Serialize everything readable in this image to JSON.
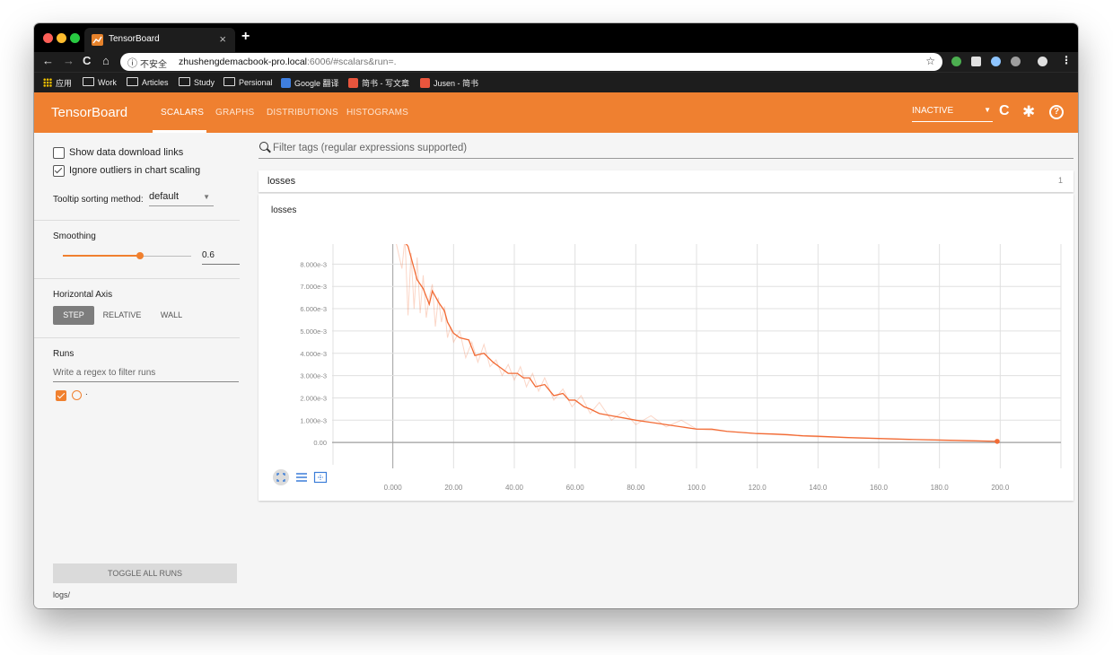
{
  "browser": {
    "tab_title": "TensorBoard",
    "tab_close": "×",
    "new_tab": "+",
    "nav": {
      "back": "←",
      "forward": "→",
      "reload": "C",
      "home": "⌂"
    },
    "omnibox": {
      "info_icon": "ⓘ",
      "security": "不安全",
      "url_host": "zhushengdemacbook-pro.local",
      "url_rest": ":6006/#scalars&run=.",
      "star": "☆"
    },
    "bookmarks": [
      {
        "label": "应用",
        "icon": "apps-icon"
      },
      {
        "label": "Work",
        "icon": "folder-icon"
      },
      {
        "label": "Articles",
        "icon": "folder-icon"
      },
      {
        "label": "Study",
        "icon": "folder-icon"
      },
      {
        "label": "Persional",
        "icon": "folder-icon"
      },
      {
        "label": "Google 翻译",
        "icon": "translate-icon"
      },
      {
        "label": "简书 - 写文章",
        "icon": "jianshu-icon"
      },
      {
        "label": "Jusen - 简书",
        "icon": "jianshu-icon"
      }
    ],
    "extension_colors": [
      "#4caf50",
      "#e0e0e0",
      "#8ec5ff",
      "#9e9e9e",
      "#e0e0e0"
    ]
  },
  "header": {
    "brand": "TensorBoard",
    "tabs": [
      "SCALARS",
      "GRAPHS",
      "DISTRIBUTIONS",
      "HISTOGRAMS"
    ],
    "active_tab": "SCALARS",
    "status_select": "INACTIVE",
    "accent": "#ef8030"
  },
  "sidebar": {
    "show_download_links": "Show data download links",
    "ignore_outliers": "Ignore outliers in chart scaling",
    "tooltip_label": "Tooltip sorting method:",
    "tooltip_value": "default",
    "smoothing_label": "Smoothing",
    "smoothing_value": "0.6",
    "smoothing_fraction": 0.6,
    "horizontal_axis_label": "Horizontal Axis",
    "axis_options": [
      "STEP",
      "RELATIVE",
      "WALL"
    ],
    "runs_label": "Runs",
    "runs_filter_placeholder": "Write a regex to filter runs",
    "run_name": ".",
    "toggle_all_runs": "TOGGLE ALL RUNS",
    "log_dir": "logs/"
  },
  "main": {
    "filter_placeholder": "Filter tags (regular expressions supported)",
    "category_name": "losses",
    "category_count": "1",
    "card_title": "losses"
  },
  "chart_data": {
    "type": "line",
    "title": "losses",
    "x_ticks": [
      "0.000",
      "20.00",
      "40.00",
      "60.00",
      "80.00",
      "100.0",
      "120.0",
      "140.0",
      "160.0",
      "180.0",
      "200.0"
    ],
    "y_ticks": [
      "0.00",
      "1.000e-3",
      "2.000e-3",
      "3.000e-3",
      "4.000e-3",
      "5.000e-3",
      "6.000e-3",
      "7.000e-3",
      "8.000e-3"
    ],
    "xlim": [
      -20,
      220
    ],
    "ylim": [
      -0.001,
      0.0089
    ],
    "color": "#f26b35",
    "series": [
      {
        "name": "smoothed",
        "x": [
          1,
          5,
          8,
          10,
          12,
          13,
          15,
          17,
          18,
          20,
          22,
          25,
          27,
          30,
          33,
          36,
          38,
          41,
          43,
          45,
          47,
          50,
          53,
          56,
          58,
          60,
          63,
          65,
          68,
          72,
          76,
          80,
          85,
          90,
          95,
          100,
          105,
          110,
          115,
          120,
          125,
          130,
          135,
          140,
          145,
          150,
          160,
          170,
          180,
          190,
          199
        ],
        "values": [
          0.0095,
          0.0088,
          0.0073,
          0.0069,
          0.0062,
          0.0068,
          0.0063,
          0.0059,
          0.0054,
          0.0049,
          0.0047,
          0.0046,
          0.0039,
          0.004,
          0.0036,
          0.0033,
          0.0031,
          0.0031,
          0.0029,
          0.0029,
          0.0025,
          0.0026,
          0.0021,
          0.0022,
          0.0019,
          0.0019,
          0.0016,
          0.0015,
          0.0013,
          0.0012,
          0.0011,
          0.001,
          0.0009,
          0.0008,
          0.0007,
          0.0006,
          0.0006,
          0.0005,
          0.00045,
          0.0004,
          0.00038,
          0.00035,
          0.0003,
          0.00028,
          0.00025,
          0.00022,
          0.00018,
          0.00014,
          0.00011,
          8e-05,
          5e-05
        ]
      },
      {
        "name": "raw",
        "x": [
          1,
          3,
          4,
          5,
          6,
          7,
          8,
          9,
          10,
          11,
          12,
          13,
          14,
          15,
          16,
          17,
          18,
          19,
          20,
          22,
          24,
          26,
          28,
          30,
          32,
          34,
          36,
          38,
          40,
          42,
          44,
          46,
          48,
          50,
          53,
          56,
          59,
          62,
          65,
          68,
          72,
          76,
          80,
          85,
          90,
          95,
          100,
          110,
          120,
          140,
          160,
          180,
          199
        ],
        "values": [
          0.009,
          0.0078,
          0.0092,
          0.0057,
          0.0085,
          0.006,
          0.0083,
          0.0058,
          0.0075,
          0.0056,
          0.0065,
          0.0071,
          0.0052,
          0.0065,
          0.0054,
          0.0061,
          0.0047,
          0.0052,
          0.0045,
          0.005,
          0.0038,
          0.0045,
          0.0036,
          0.0044,
          0.0034,
          0.0037,
          0.003,
          0.0035,
          0.0028,
          0.0034,
          0.0025,
          0.0031,
          0.0023,
          0.0029,
          0.0019,
          0.0024,
          0.0016,
          0.0021,
          0.0013,
          0.0018,
          0.001,
          0.0014,
          0.0008,
          0.0012,
          0.0007,
          0.001,
          0.0006,
          0.0005,
          0.0004,
          0.00025,
          0.00017,
          0.0001,
          5e-05
        ]
      }
    ]
  }
}
